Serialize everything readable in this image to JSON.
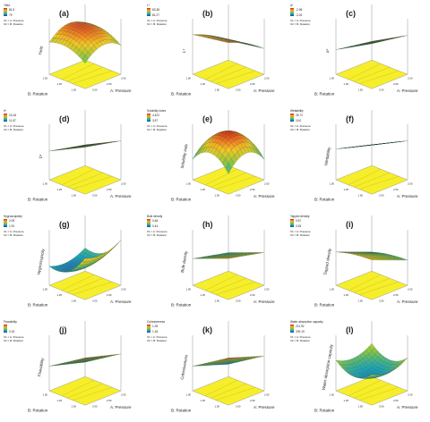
{
  "figure": {
    "panels": [
      {
        "label": "(a)",
        "response": "Yield",
        "legend_values": [
          "81.5",
          "79"
        ]
      },
      {
        "label": "(b)",
        "response": "L*",
        "legend_values": [
          "83.38",
          "81.27"
        ]
      },
      {
        "label": "(c)",
        "response": "a*",
        "legend_values": [
          "-2.96",
          "-3.02"
        ]
      },
      {
        "label": "(d)",
        "response": "b*",
        "legend_values": [
          "15.18",
          "11.57"
        ]
      },
      {
        "label": "(e)",
        "response": "Solubility index",
        "legend_values": [
          "4.422",
          "3.57"
        ]
      },
      {
        "label": "(f)",
        "response": "Wettability",
        "legend_values": [
          "25.72",
          "15.0"
        ]
      },
      {
        "label": "(g)",
        "response": "Hygroscopicity",
        "legend_values": [
          "2.09",
          "1.91"
        ]
      },
      {
        "label": "(h)",
        "response": "Bulk density",
        "legend_values": [
          "0.48",
          "0.44"
        ]
      },
      {
        "label": "(i)",
        "response": "Tapped density",
        "legend_values": [
          "0.57",
          "0.53"
        ]
      },
      {
        "label": "(j)",
        "response": "Flowability",
        "legend_values": [
          "",
          "0.15"
        ]
      },
      {
        "label": "(k)",
        "response": "Cohesiveness",
        "legend_values": [
          "1.25",
          "1.18"
        ]
      },
      {
        "label": "(l)",
        "response": "Water absorption capacity",
        "legend_values": [
          "211.92",
          "209.19"
        ]
      }
    ],
    "legend_factors": [
      "X1 = A: Pressure",
      "X2 = B: Rotation"
    ],
    "axis_b": "B: Rotation",
    "axis_a": "A: Pressure",
    "b_ticks": [
      "1.00",
      "1.25",
      "1.50"
    ],
    "a_ticks": [
      "2.00",
      "2.50",
      "3.00"
    ]
  },
  "chart_data": [
    {
      "type": "surface",
      "label": "(a)",
      "response": "Yield",
      "xlabel": "A: Pressure",
      "ylabel": "B: Rotation",
      "zlabel": "Yield",
      "zrange": [
        79,
        81.5
      ]
    },
    {
      "type": "surface",
      "label": "(b)",
      "response": "L*",
      "xlabel": "A: Pressure",
      "ylabel": "B: Rotation",
      "zlabel": "L*",
      "zrange": [
        81.27,
        83.38
      ]
    },
    {
      "type": "surface",
      "label": "(c)",
      "response": "a*",
      "xlabel": "A: Pressure",
      "ylabel": "B: Rotation",
      "zlabel": "a*",
      "zrange": [
        -3.02,
        -2.96
      ]
    },
    {
      "type": "surface",
      "label": "(d)",
      "response": "b*",
      "xlabel": "A: Pressure",
      "ylabel": "B: Rotation",
      "zlabel": "b*",
      "zrange": [
        11.57,
        15.18
      ]
    },
    {
      "type": "surface",
      "label": "(e)",
      "response": "Solubility index",
      "xlabel": "A: Pressure",
      "ylabel": "B: Rotation",
      "zlabel": "Solubility inde",
      "zrange": [
        3.57,
        4.422
      ]
    },
    {
      "type": "surface",
      "label": "(f)",
      "response": "Wettability",
      "xlabel": "A: Pressure",
      "ylabel": "B: Rotation",
      "zlabel": "Wettability",
      "zrange": [
        15.0,
        25.72
      ]
    },
    {
      "type": "surface",
      "label": "(g)",
      "response": "Hygroscopicity",
      "xlabel": "A: Pressure",
      "ylabel": "B: Rotation",
      "zlabel": "Hygroscopicity",
      "zrange": [
        1.91,
        2.09
      ]
    },
    {
      "type": "surface",
      "label": "(h)",
      "response": "Bulk density",
      "xlabel": "A: Pressure",
      "ylabel": "B: Rotation",
      "zlabel": "Bulk density",
      "zrange": [
        0.44,
        0.48
      ]
    },
    {
      "type": "surface",
      "label": "(i)",
      "response": "Tapped density",
      "xlabel": "A: Pressure",
      "ylabel": "B: Rotation",
      "zlabel": "Tapped density",
      "zrange": [
        0.53,
        0.57
      ]
    },
    {
      "type": "surface",
      "label": "(j)",
      "response": "Flowability",
      "xlabel": "A: Pressure",
      "ylabel": "B: Rotation",
      "zlabel": "Flowability",
      "zrange": [
        null,
        0.15
      ]
    },
    {
      "type": "surface",
      "label": "(k)",
      "response": "Cohesiveness",
      "xlabel": "A: Pressure",
      "ylabel": "B: Rotation",
      "zlabel": "Cohesiveness",
      "zrange": [
        1.18,
        1.25
      ]
    },
    {
      "type": "surface",
      "label": "(l)",
      "response": "Water absorption capacity",
      "xlabel": "A: Pressure",
      "ylabel": "B: Rotation",
      "zlabel": "Water absorption capacity",
      "zrange": [
        209.19,
        211.92
      ]
    }
  ]
}
